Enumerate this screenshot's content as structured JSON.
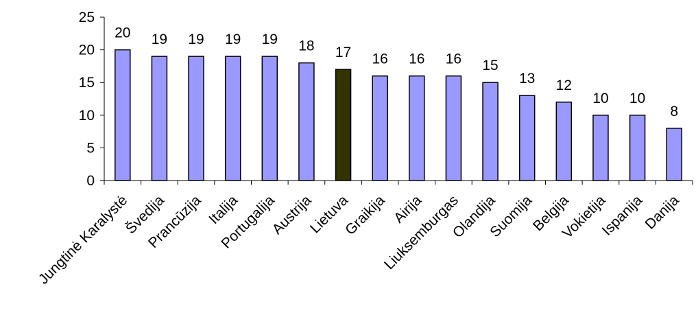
{
  "chart_data": {
    "type": "bar",
    "title": "",
    "xlabel": "",
    "ylabel": "",
    "ylim": [
      0,
      25
    ],
    "yticks": [
      0,
      5,
      10,
      15,
      20,
      25
    ],
    "grid": false,
    "categories": [
      "Jungtinė Karalystė",
      "Švedija",
      "Prancūzija",
      "Italija",
      "Portugalija",
      "Austrija",
      "Lietuva",
      "Graikija",
      "Airija",
      "Liuksemburgas",
      "Olandija",
      "Suomija",
      "Belgija",
      "Vokietija",
      "Ispanija",
      "Danija"
    ],
    "values": [
      20,
      19,
      19,
      19,
      19,
      18,
      17,
      16,
      16,
      16,
      15,
      13,
      12,
      10,
      10,
      8
    ],
    "data_labels": [
      "20",
      "19",
      "19",
      "19",
      "19",
      "18",
      "17",
      "16",
      "16",
      "16",
      "15",
      "13",
      "12",
      "10",
      "10",
      "8"
    ],
    "colors": {
      "bar": "#9999ff",
      "highlight_bar": "#333300",
      "bar_stroke": "#000000",
      "axis": "#000000"
    },
    "highlight_category": "Lietuva"
  }
}
